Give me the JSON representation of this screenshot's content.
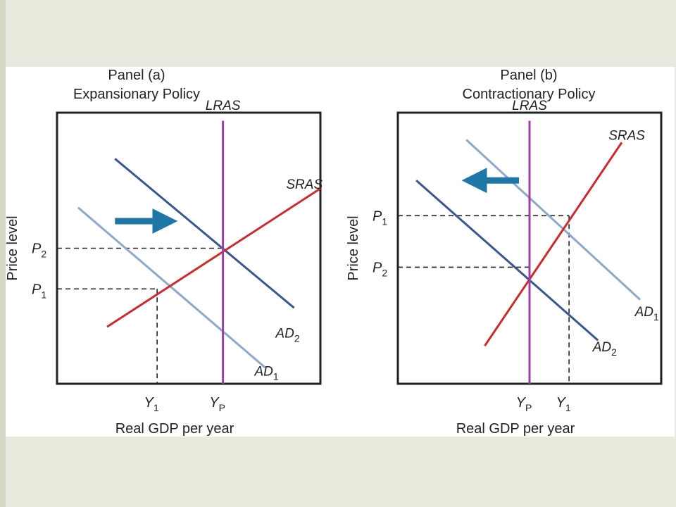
{
  "chart_data": [
    {
      "type": "line",
      "title": "Panel (a)",
      "subtitle": "Expansionary Policy",
      "xlabel": "Real GDP per year",
      "ylabel": "Price level",
      "xlim": [
        0,
        10
      ],
      "ylim": [
        0,
        10
      ],
      "grid": false,
      "series": [
        {
          "name": "AD1",
          "label_main": "AD",
          "label_sub": "1",
          "color": "#8ea9c8",
          "points": [
            [
              0.8,
              6.5
            ],
            [
              7.9,
              0.6
            ]
          ]
        },
        {
          "name": "AD2",
          "label_main": "AD",
          "label_sub": "2",
          "color": "#3a5590",
          "points": [
            [
              2.2,
              8.3
            ],
            [
              9.0,
              2.8
            ]
          ]
        },
        {
          "name": "SRAS",
          "label_main": "SRAS",
          "label_sub": "",
          "color": "#cc2b2b",
          "points": [
            [
              1.9,
              2.1
            ],
            [
              10.0,
              7.2
            ]
          ]
        },
        {
          "name": "LRAS",
          "label_main": "LRAS",
          "label_sub": "",
          "color": "#9b3fa6",
          "points": [
            [
              6.3,
              0
            ],
            [
              6.3,
              9.7
            ]
          ]
        }
      ],
      "equilibria": [
        {
          "x": 3.8,
          "y": 3.5,
          "x_tick": "Y",
          "x_tick_sub": "1",
          "y_tick": "P",
          "y_tick_sub": "1"
        },
        {
          "x": 6.3,
          "y": 5.0,
          "x_tick": "Y",
          "x_tick_sub": "P",
          "y_tick": "P",
          "y_tick_sub": "2"
        }
      ],
      "shift_arrow": {
        "direction": "right",
        "color": "#1f77a8",
        "from": [
          2.2,
          6.0
        ],
        "to": [
          4.1,
          6.0
        ]
      },
      "label_positions": {
        "LRAS": [
          6.3,
          10.1
        ],
        "SRAS": [
          8.7,
          7.2
        ],
        "AD2": [
          8.3,
          1.7
        ],
        "AD1": [
          7.5,
          0.3
        ]
      }
    },
    {
      "type": "line",
      "title": "Panel (b)",
      "subtitle": "Contractionary Policy",
      "xlabel": "Real GDP per year",
      "ylabel": "Price level",
      "xlim": [
        0,
        10
      ],
      "ylim": [
        0,
        10
      ],
      "grid": false,
      "series": [
        {
          "name": "AD1",
          "label_main": "AD",
          "label_sub": "1",
          "color": "#8ea9c8",
          "points": [
            [
              2.6,
              9.0
            ],
            [
              9.2,
              3.1
            ]
          ]
        },
        {
          "name": "AD2",
          "label_main": "AD",
          "label_sub": "2",
          "color": "#3a5590",
          "points": [
            [
              0.7,
              7.5
            ],
            [
              7.6,
              1.6
            ]
          ]
        },
        {
          "name": "SRAS",
          "label_main": "SRAS",
          "label_sub": "",
          "color": "#cc2b2b",
          "points": [
            [
              3.3,
              1.4
            ],
            [
              8.5,
              8.9
            ]
          ]
        },
        {
          "name": "LRAS",
          "label_main": "LRAS",
          "label_sub": "",
          "color": "#9b3fa6",
          "points": [
            [
              5.0,
              0
            ],
            [
              5.0,
              9.7
            ]
          ]
        }
      ],
      "equilibria": [
        {
          "x": 5.0,
          "y": 4.3,
          "x_tick": "Y",
          "x_tick_sub": "P",
          "y_tick": "P",
          "y_tick_sub": "2"
        },
        {
          "x": 6.5,
          "y": 6.2,
          "x_tick": "Y",
          "x_tick_sub": "1",
          "y_tick": "P",
          "y_tick_sub": "1"
        }
      ],
      "shift_arrow": {
        "direction": "left",
        "color": "#1f77a8",
        "from": [
          4.6,
          7.5
        ],
        "to": [
          2.9,
          7.5
        ]
      },
      "label_positions": {
        "LRAS": [
          5.0,
          10.1
        ],
        "SRAS": [
          8.0,
          9.0
        ],
        "AD1": [
          9.0,
          2.5
        ],
        "AD2": [
          7.4,
          1.2
        ]
      }
    }
  ]
}
